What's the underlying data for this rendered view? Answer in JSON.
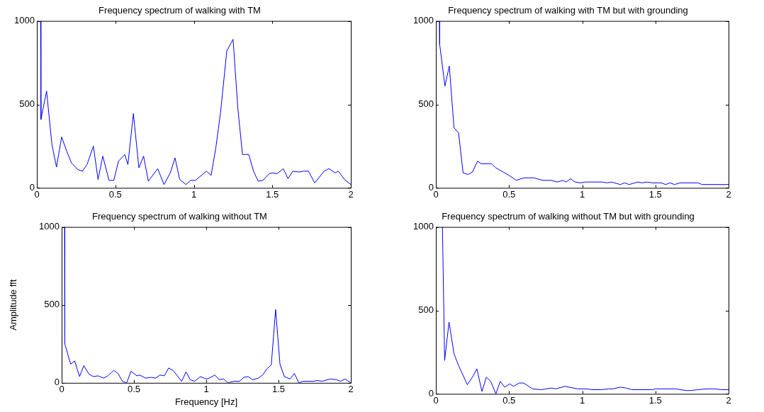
{
  "chart_data": [
    {
      "type": "line",
      "title": "Frequency spectrum of walking with TM",
      "color": "#0000ff",
      "xlim": [
        0,
        2
      ],
      "ylim": [
        0,
        1000
      ],
      "xticks": [
        0,
        0.5,
        1,
        1.5,
        2
      ],
      "yticks": [
        0,
        500,
        1000
      ],
      "grid": false,
      "x": [
        0.024,
        0.026,
        0.062,
        0.096,
        0.125,
        0.158,
        0.19,
        0.22,
        0.26,
        0.29,
        0.32,
        0.36,
        0.39,
        0.42,
        0.46,
        0.49,
        0.52,
        0.56,
        0.58,
        0.615,
        0.65,
        0.68,
        0.71,
        0.77,
        0.81,
        0.85,
        0.88,
        0.91,
        0.95,
        0.98,
        1.01,
        1.08,
        1.11,
        1.14,
        1.17,
        1.21,
        1.25,
        1.28,
        1.31,
        1.35,
        1.38,
        1.41,
        1.44,
        1.48,
        1.5,
        1.53,
        1.57,
        1.6,
        1.63,
        1.67,
        1.7,
        1.73,
        1.77,
        1.83,
        1.86,
        1.9,
        1.92,
        1.96,
        2.0
      ],
      "values": [
        1000,
        410,
        580,
        260,
        125,
        305,
        220,
        150,
        110,
        100,
        140,
        250,
        50,
        190,
        45,
        45,
        160,
        200,
        140,
        445,
        120,
        190,
        40,
        115,
        20,
        90,
        180,
        50,
        20,
        45,
        45,
        100,
        75,
        240,
        450,
        820,
        890,
        480,
        200,
        200,
        100,
        40,
        45,
        85,
        90,
        85,
        115,
        55,
        100,
        95,
        100,
        100,
        30,
        100,
        115,
        90,
        100,
        50,
        20
      ]
    },
    {
      "type": "line",
      "title": "Frequency spectrum of walking with TM but with grounding",
      "color": "#0000ff",
      "xlim": [
        0,
        2
      ],
      "ylim": [
        0,
        1000
      ],
      "xticks": [
        0,
        0.5,
        1,
        1.5,
        2
      ],
      "yticks": [
        0,
        500,
        1000
      ],
      "grid": false,
      "x": [
        0.025,
        0.026,
        0.062,
        0.092,
        0.124,
        0.155,
        0.186,
        0.22,
        0.25,
        0.285,
        0.31,
        0.38,
        0.41,
        0.5,
        0.55,
        0.6,
        0.67,
        0.73,
        0.79,
        0.83,
        0.87,
        0.89,
        0.92,
        0.95,
        0.99,
        1.02,
        1.14,
        1.17,
        1.2,
        1.26,
        1.29,
        1.32,
        1.38,
        1.41,
        1.44,
        1.48,
        1.54,
        1.57,
        1.6,
        1.63,
        1.67,
        1.79,
        1.82,
        2.0
      ],
      "values": [
        1000,
        860,
        610,
        730,
        360,
        330,
        90,
        80,
        95,
        160,
        145,
        145,
        120,
        75,
        45,
        60,
        60,
        45,
        45,
        35,
        45,
        35,
        55,
        35,
        30,
        35,
        35,
        30,
        35,
        20,
        30,
        20,
        35,
        30,
        35,
        30,
        30,
        20,
        30,
        20,
        30,
        30,
        20,
        20
      ]
    },
    {
      "type": "line",
      "title": "Frequency spectrum of walking without TM",
      "xlabel": "Frequency [Hz]",
      "ylabel": "Amplitude fft",
      "color": "#0000ff",
      "xlim": [
        0,
        2
      ],
      "ylim": [
        0,
        1000
      ],
      "xticks": [
        0,
        0.5,
        1,
        1.5,
        2
      ],
      "yticks": [
        0,
        500,
        1000
      ],
      "grid": false,
      "x": [
        0.02,
        0.022,
        0.062,
        0.09,
        0.124,
        0.153,
        0.19,
        0.22,
        0.25,
        0.29,
        0.32,
        0.36,
        0.39,
        0.42,
        0.45,
        0.48,
        0.52,
        0.54,
        0.58,
        0.62,
        0.65,
        0.68,
        0.71,
        0.74,
        0.77,
        0.83,
        0.86,
        0.89,
        0.92,
        0.96,
        1.0,
        1.02,
        1.06,
        1.09,
        1.12,
        1.15,
        1.19,
        1.23,
        1.26,
        1.29,
        1.32,
        1.36,
        1.39,
        1.42,
        1.45,
        1.48,
        1.51,
        1.54,
        1.58,
        1.61,
        1.64,
        1.67,
        1.74,
        1.77,
        1.8,
        1.86,
        1.9,
        1.93,
        1.96,
        2.0
      ],
      "values": [
        1000,
        250,
        120,
        140,
        40,
        110,
        55,
        40,
        45,
        30,
        45,
        80,
        60,
        10,
        0,
        75,
        45,
        50,
        30,
        35,
        30,
        50,
        45,
        95,
        80,
        10,
        70,
        20,
        10,
        40,
        25,
        30,
        50,
        20,
        25,
        0,
        10,
        10,
        35,
        40,
        20,
        30,
        50,
        90,
        115,
        470,
        120,
        40,
        25,
        60,
        0,
        10,
        10,
        15,
        10,
        25,
        20,
        10,
        25,
        0
      ]
    },
    {
      "type": "line",
      "title": "Frequency spectrum of walking without TM but with grounding",
      "color": "#0000ff",
      "xlim": [
        0,
        2
      ],
      "ylim": [
        0,
        1000
      ],
      "xticks": [
        0,
        0.5,
        1,
        1.5,
        2
      ],
      "yticks": [
        0,
        500,
        1000
      ],
      "grid": false,
      "x": [
        0.045,
        0.06,
        0.09,
        0.124,
        0.155,
        0.215,
        0.25,
        0.28,
        0.315,
        0.345,
        0.375,
        0.41,
        0.44,
        0.47,
        0.505,
        0.53,
        0.57,
        0.6,
        0.66,
        0.72,
        0.79,
        0.82,
        0.88,
        0.91,
        0.97,
        1.03,
        1.07,
        1.13,
        1.18,
        1.21,
        1.26,
        1.3,
        1.34,
        1.48,
        1.5,
        1.64,
        1.71,
        1.74,
        1.79,
        1.85,
        1.91,
        1.95,
        2.0
      ],
      "values": [
        1000,
        200,
        430,
        240,
        170,
        55,
        100,
        150,
        15,
        100,
        75,
        0,
        75,
        40,
        60,
        45,
        65,
        65,
        30,
        25,
        35,
        30,
        45,
        40,
        30,
        30,
        25,
        25,
        30,
        30,
        40,
        35,
        25,
        25,
        30,
        30,
        20,
        20,
        25,
        30,
        30,
        25,
        25
      ]
    }
  ]
}
